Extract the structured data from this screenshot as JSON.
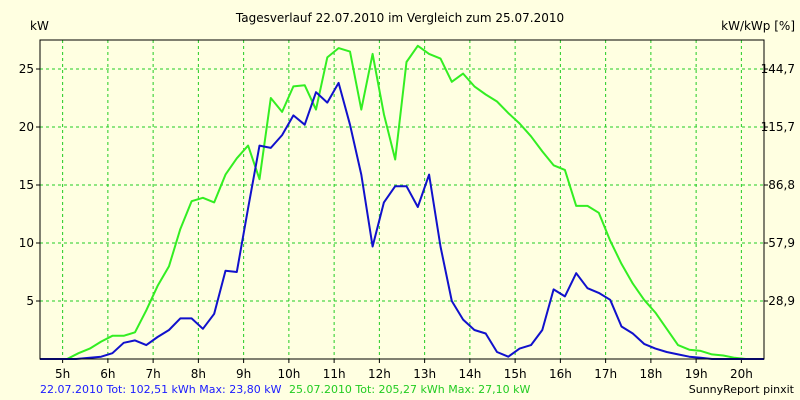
{
  "chart_data": {
    "type": "line",
    "title": "Tagesverlauf 22.07.2010 im Vergleich zum 25.07.2010",
    "ylabel": "kW",
    "y2label": "kW/kWp [%]",
    "xlim": [
      4.5,
      20.5
    ],
    "ylim": [
      0,
      27.5
    ],
    "grid": true,
    "x_ticks": [
      {
        "x": 5,
        "label": "5h"
      },
      {
        "x": 6,
        "label": "6h"
      },
      {
        "x": 7,
        "label": "7h"
      },
      {
        "x": 8,
        "label": "8h"
      },
      {
        "x": 9,
        "label": "9h"
      },
      {
        "x": 10,
        "label": "10h"
      },
      {
        "x": 11,
        "label": "11h"
      },
      {
        "x": 12,
        "label": "12h"
      },
      {
        "x": 13,
        "label": "13h"
      },
      {
        "x": 14,
        "label": "14h"
      },
      {
        "x": 15,
        "label": "15h"
      },
      {
        "x": 16,
        "label": "16h"
      },
      {
        "x": 17,
        "label": "17h"
      },
      {
        "x": 18,
        "label": "18h"
      },
      {
        "x": 19,
        "label": "19h"
      },
      {
        "x": 20,
        "label": "20h"
      }
    ],
    "y_ticks": [
      {
        "y": 5,
        "label": "5"
      },
      {
        "y": 10,
        "label": "10"
      },
      {
        "y": 15,
        "label": "15"
      },
      {
        "y": 20,
        "label": "20"
      },
      {
        "y": 25,
        "label": "25"
      }
    ],
    "y2_ticks": [
      {
        "y": 5,
        "label": "28,9"
      },
      {
        "y": 10,
        "label": "57,9"
      },
      {
        "y": 15,
        "label": "86,8"
      },
      {
        "y": 20,
        "label": "115,7"
      },
      {
        "y": 25,
        "label": "144,7"
      }
    ],
    "series": [
      {
        "color": "#33ee22",
        "x": [
          4.5,
          5.1,
          5.35,
          5.6,
          5.85,
          6.1,
          6.35,
          6.6,
          6.85,
          7.1,
          7.35,
          7.6,
          7.85,
          8.1,
          8.35,
          8.6,
          8.85,
          9.1,
          9.35,
          9.6,
          9.85,
          10.1,
          10.35,
          10.6,
          10.85,
          11.1,
          11.35,
          11.6,
          11.85,
          12.1,
          12.35,
          12.6,
          12.85,
          13.1,
          13.35,
          13.6,
          13.85,
          14.1,
          14.35,
          14.6,
          14.85,
          15.1,
          15.35,
          15.6,
          15.85,
          16.1,
          16.35,
          16.6,
          16.85,
          17.1,
          17.35,
          17.6,
          17.85,
          18.1,
          18.35,
          18.6,
          18.85,
          19.1,
          19.35,
          19.6,
          19.85,
          20.1,
          20.5
        ],
        "y": [
          0,
          0,
          0.5,
          0.9,
          1.5,
          2.0,
          2.0,
          2.3,
          4.2,
          6.3,
          8.0,
          11.2,
          13.6,
          13.9,
          13.5,
          15.9,
          17.3,
          18.4,
          15.5,
          22.5,
          21.3,
          23.5,
          23.6,
          21.5,
          26.0,
          26.8,
          26.5,
          21.5,
          26.3,
          21.1,
          17.2,
          25.6,
          27.0,
          26.3,
          25.9,
          23.9,
          24.6,
          23.5,
          22.8,
          22.2,
          21.2,
          20.3,
          19.2,
          17.9,
          16.7,
          16.3,
          13.2,
          13.2,
          12.6,
          10.2,
          8.2,
          6.5,
          5.1,
          4.0,
          2.6,
          1.2,
          0.8,
          0.7,
          0.4,
          0.3,
          0.1,
          0,
          0
        ]
      },
      {
        "color": "#1111cc",
        "x": [
          4.5,
          5.3,
          5.6,
          5.85,
          6.1,
          6.35,
          6.6,
          6.85,
          7.1,
          7.35,
          7.6,
          7.85,
          8.1,
          8.35,
          8.6,
          8.85,
          9.1,
          9.35,
          9.6,
          9.85,
          10.1,
          10.35,
          10.6,
          10.85,
          11.1,
          11.35,
          11.6,
          11.85,
          12.1,
          12.35,
          12.6,
          12.85,
          13.1,
          13.35,
          13.6,
          13.85,
          14.1,
          14.35,
          14.6,
          14.85,
          15.1,
          15.35,
          15.6,
          15.85,
          16.1,
          16.35,
          16.6,
          16.85,
          17.1,
          17.35,
          17.6,
          17.85,
          18.1,
          18.35,
          18.6,
          18.85,
          19.1,
          19.35,
          19.6,
          19.85,
          20.1,
          20.5
        ],
        "y": [
          0,
          0,
          0.1,
          0.2,
          0.5,
          1.4,
          1.6,
          1.2,
          1.9,
          2.5,
          3.5,
          3.5,
          2.6,
          3.9,
          7.6,
          7.5,
          13.0,
          18.4,
          18.2,
          19.3,
          21.0,
          20.2,
          23.0,
          22.1,
          23.8,
          20.2,
          15.9,
          9.7,
          13.5,
          14.9,
          14.9,
          13.1,
          15.9,
          9.7,
          5.0,
          3.4,
          2.5,
          2.2,
          0.6,
          0.2,
          0.9,
          1.2,
          2.5,
          6.0,
          5.4,
          7.4,
          6.1,
          5.7,
          5.1,
          2.8,
          2.2,
          1.3,
          0.9,
          0.6,
          0.4,
          0.2,
          0.1,
          0,
          0,
          0,
          0,
          0
        ]
      }
    ]
  },
  "footer": {
    "blue_summary": "22.07.2010 Tot: 102,51 kWh Max: 23,80 kW",
    "green_summary": "25.07.2010 Tot: 205,27 kWh Max: 27,10 kW",
    "credit": "SunnyReport pinxit"
  },
  "colors": {
    "background": "#ffffe1",
    "grid": "#22cc22",
    "green_series": "#33ee22",
    "blue_series": "#1111cc",
    "blue_text": "#1a1aff",
    "green_text": "#22cc22"
  }
}
